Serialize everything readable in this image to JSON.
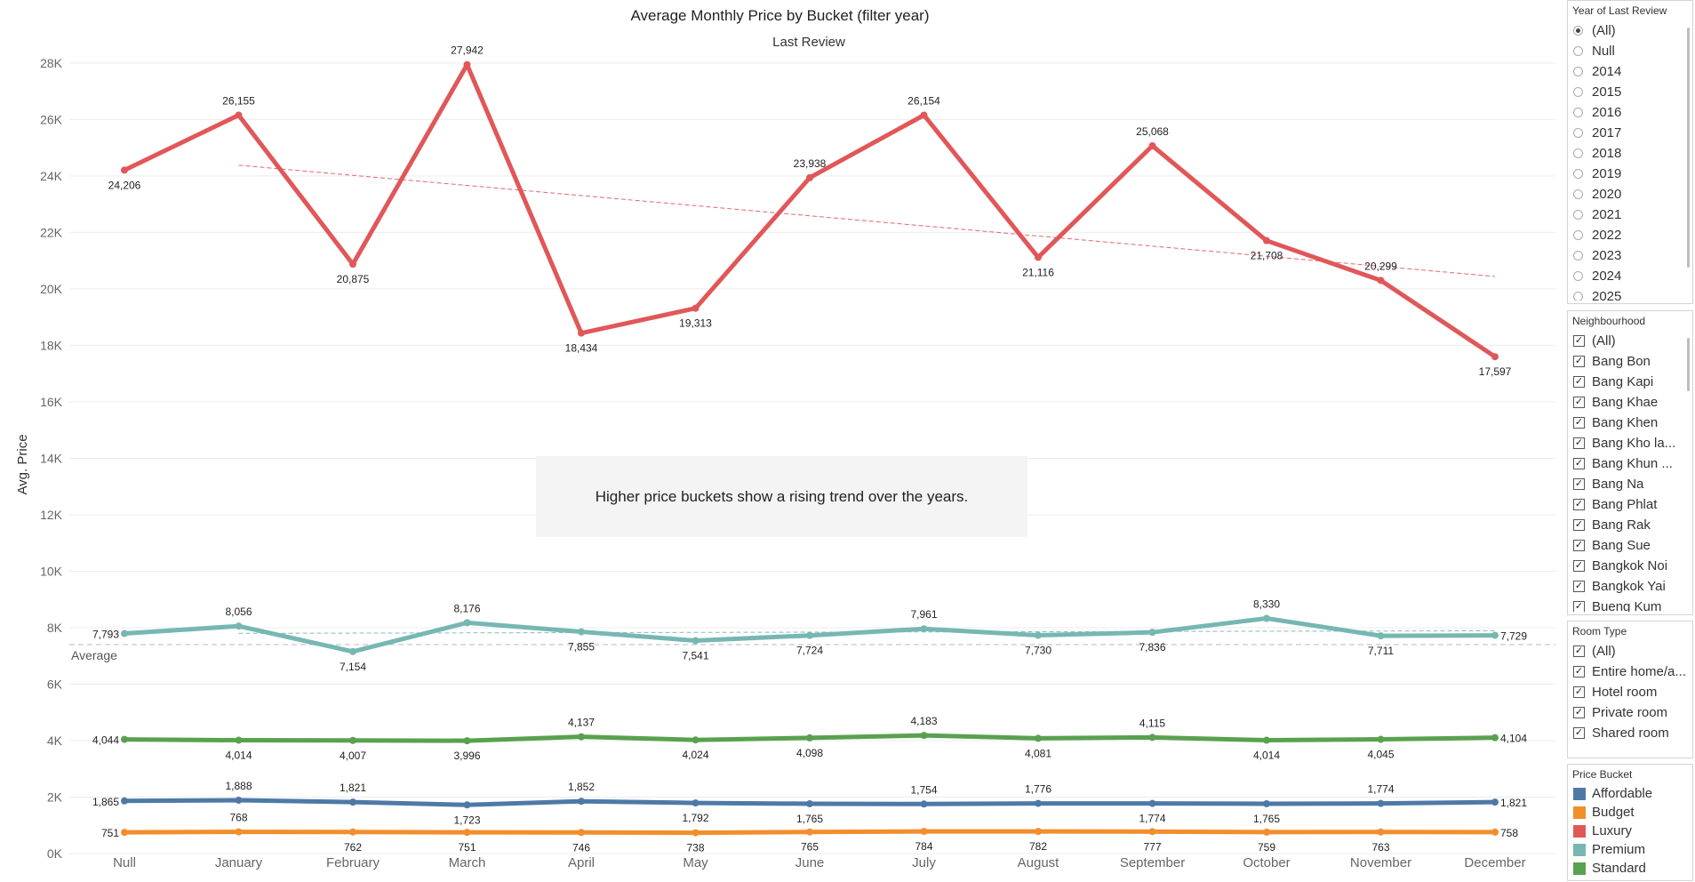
{
  "title": "Average Monthly Price by Bucket (filter year)",
  "subtitle": "Last Review",
  "annotation": "Higher price buckets show a rising trend over the years.",
  "reference_line_label": "Average",
  "chart_data": {
    "type": "line",
    "title": "Average Monthly Price by Bucket (filter year)",
    "subtitle": "Last Review",
    "xlabel": "",
    "ylabel": "Avg. Price",
    "categories": [
      "Null",
      "January",
      "February",
      "March",
      "April",
      "May",
      "June",
      "July",
      "August",
      "September",
      "October",
      "November",
      "December"
    ],
    "y_ticks": [
      0,
      2000,
      4000,
      6000,
      8000,
      10000,
      12000,
      14000,
      16000,
      18000,
      20000,
      22000,
      24000,
      26000,
      28000
    ],
    "y_tick_labels": [
      "0K",
      "2K",
      "4K",
      "6K",
      "8K",
      "10K",
      "12K",
      "14K",
      "16K",
      "18K",
      "20K",
      "22K",
      "24K",
      "26K",
      "28K"
    ],
    "ylim": [
      0,
      28500
    ],
    "grid": "horizontal",
    "series": [
      {
        "name": "Luxury",
        "color": "#e15759",
        "values": [
          24206,
          26155,
          20875,
          27942,
          18434,
          19313,
          23938,
          26154,
          21116,
          25068,
          21708,
          20299,
          17597
        ],
        "labels": [
          "24,206",
          "26,155",
          "20,875",
          "27,942",
          "18,434",
          "19,313",
          "23,938",
          "26,154",
          "21,116",
          "25,068",
          "21,708",
          "20,299",
          "17,597"
        ],
        "label_pos": [
          "below",
          "above",
          "below",
          "above",
          "below",
          "below",
          "above",
          "above",
          "below",
          "above",
          "below",
          "above",
          "below"
        ],
        "trend": {
          "from_index": 1,
          "to_index": 12,
          "start": 24380,
          "end": 20440
        }
      },
      {
        "name": "Premium",
        "color": "#76b7b2",
        "values": [
          7793,
          8056,
          7154,
          8176,
          7855,
          7541,
          7724,
          7961,
          7730,
          7836,
          8330,
          7711,
          7729
        ],
        "labels": [
          "7,793",
          "8,056",
          "7,154",
          "8,176",
          "7,855",
          "7,541",
          "7,724",
          "7,961",
          "7,730",
          "7,836",
          "8,330",
          "7,711",
          "7,729"
        ],
        "label_pos": [
          "left",
          "above",
          "below",
          "above",
          "below",
          "below",
          "below",
          "above",
          "below",
          "below",
          "above",
          "below",
          "right"
        ],
        "trend": {
          "from_index": 1,
          "to_index": 12,
          "start": 7800,
          "end": 7890
        }
      },
      {
        "name": "Standard",
        "color": "#59a14f",
        "values": [
          4044,
          4014,
          4007,
          3996,
          4137,
          4024,
          4098,
          4183,
          4081,
          4115,
          4014,
          4045,
          4104
        ],
        "labels": [
          "4,044",
          "4,014",
          "4,007",
          "3,996",
          "4,137",
          "4,024",
          "4,098",
          "4,183",
          "4,081",
          "4,115",
          "4,014",
          "4,045",
          "4,104"
        ],
        "label_pos": [
          "left",
          "below",
          "below",
          "below",
          "above",
          "below",
          "below",
          "above",
          "below",
          "above",
          "below",
          "below",
          "right"
        ]
      },
      {
        "name": "Affordable",
        "color": "#4e79a7",
        "values": [
          1865,
          1888,
          1821,
          1723,
          1852,
          1792,
          1765,
          1754,
          1776,
          1774,
          1765,
          1774,
          1821
        ],
        "labels": [
          "1,865",
          "1,888",
          "1,821",
          "1,723",
          "1,852",
          "1,792",
          "1,765",
          "1,754",
          "1,776",
          "1,774",
          "1,765",
          "1,774",
          "1,821"
        ],
        "label_pos": [
          "left",
          "above",
          "above",
          "below",
          "above",
          "below",
          "below",
          "above",
          "above",
          "below",
          "below",
          "above",
          "right"
        ]
      },
      {
        "name": "Budget",
        "color": "#f28e2b",
        "values": [
          751,
          768,
          762,
          751,
          746,
          738,
          765,
          784,
          782,
          777,
          759,
          763,
          758
        ],
        "labels": [
          "751",
          "768",
          "762",
          "751",
          "746",
          "738",
          "765",
          "784",
          "782",
          "777",
          "759",
          "763",
          "758"
        ],
        "label_pos": [
          "left",
          "above",
          "below",
          "below",
          "below",
          "below",
          "below",
          "below",
          "below",
          "below",
          "below",
          "below",
          "right"
        ]
      }
    ],
    "reference_line": {
      "label": "Average",
      "value": 7400
    }
  },
  "filters": {
    "year": {
      "title": "Year of Last Review",
      "options": [
        "(All)",
        "Null",
        "2014",
        "2015",
        "2016",
        "2017",
        "2018",
        "2019",
        "2020",
        "2021",
        "2022",
        "2023",
        "2024",
        "2025"
      ],
      "selected": "(All)"
    },
    "neighbourhood": {
      "title": "Neighbourhood",
      "options": [
        "(All)",
        "Bang Bon",
        "Bang Kapi",
        "Bang Khae",
        "Bang Khen",
        "Bang Kho la...",
        "Bang Khun ...",
        "Bang Na",
        "Bang Phlat",
        "Bang Rak",
        "Bang Sue",
        "Bangkok Noi",
        "Bangkok Yai",
        "Bueng Kum"
      ]
    },
    "room_type": {
      "title": "Room Type",
      "options": [
        "(All)",
        "Entire home/a...",
        "Hotel room",
        "Private room",
        "Shared room"
      ]
    }
  },
  "legend": {
    "title": "Price Bucket",
    "items": [
      {
        "label": "Affordable",
        "color": "#4e79a7"
      },
      {
        "label": "Budget",
        "color": "#f28e2b"
      },
      {
        "label": "Luxury",
        "color": "#e15759"
      },
      {
        "label": "Premium",
        "color": "#76b7b2"
      },
      {
        "label": "Standard",
        "color": "#59a14f"
      }
    ]
  },
  "icons": {
    "radio_selected": "radio-selected-icon",
    "radio": "radio-icon",
    "checkbox_checked": "checkbox-checked-icon",
    "checkmark_glyph": "✓"
  }
}
